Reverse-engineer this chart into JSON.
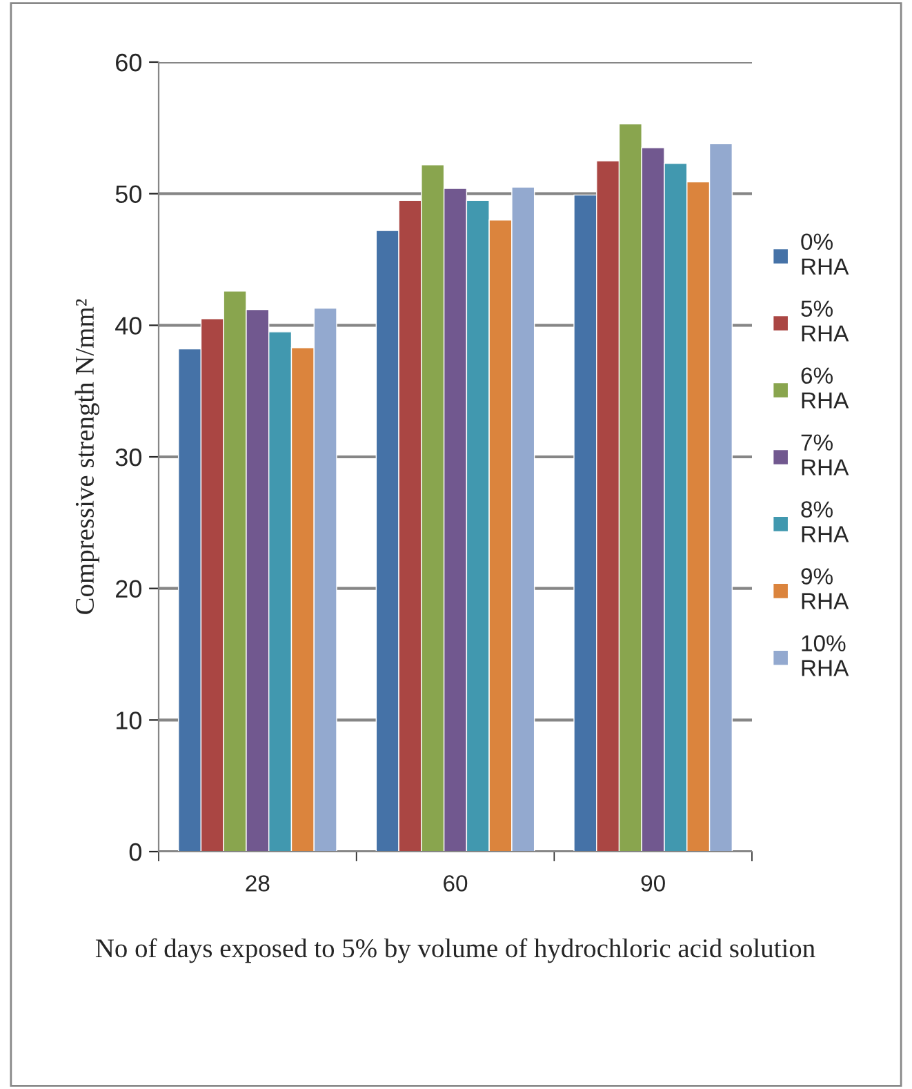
{
  "chart_data": {
    "type": "bar",
    "xlabel": "No of days exposed to 5% by volume of hydrochloric acid solution",
    "ylabel": "Compressive strength N/mm²",
    "categories": [
      "28",
      "60",
      "90"
    ],
    "series": [
      {
        "name": "0% RHA",
        "color": "#4572a7",
        "values": [
          38.2,
          47.2,
          49.9
        ]
      },
      {
        "name": "5% RHA",
        "color": "#aa4643",
        "values": [
          40.5,
          49.5,
          52.5
        ]
      },
      {
        "name": "6% RHA",
        "color": "#89a54e",
        "values": [
          42.6,
          52.2,
          55.3
        ]
      },
      {
        "name": "7% RHA",
        "color": "#71588f",
        "values": [
          41.2,
          50.4,
          53.5
        ]
      },
      {
        "name": "8% RHA",
        "color": "#4198af",
        "values": [
          39.5,
          49.5,
          52.3
        ]
      },
      {
        "name": "9% RHA",
        "color": "#db843d",
        "values": [
          38.3,
          48.0,
          50.9
        ]
      },
      {
        "name": "10% RHA",
        "color": "#93a9cf",
        "values": [
          41.3,
          50.5,
          53.8
        ]
      }
    ],
    "ylim": [
      0,
      60
    ],
    "yticks": [
      0,
      10,
      20,
      30,
      40,
      50,
      60
    ],
    "grid": "y",
    "legend": "right"
  }
}
